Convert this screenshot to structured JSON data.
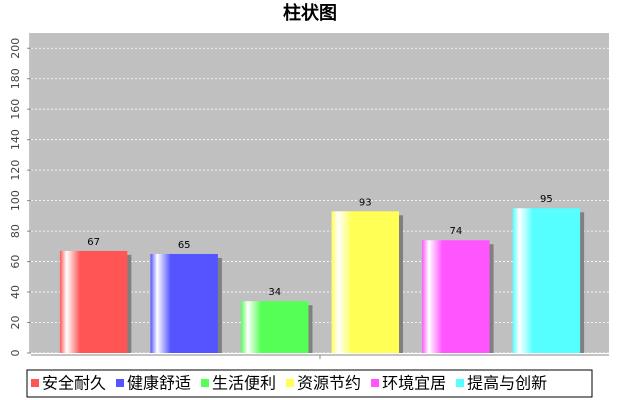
{
  "chart_data": {
    "type": "bar",
    "title": "柱状图",
    "categories": [
      null
    ],
    "series": [
      {
        "name": "安全耐久",
        "color": "#ff5555",
        "values": [
          67
        ]
      },
      {
        "name": "健康舒适",
        "color": "#5555ff",
        "values": [
          65
        ]
      },
      {
        "name": "生活便利",
        "color": "#55ff55",
        "values": [
          34
        ]
      },
      {
        "name": "资源节约",
        "color": "#ffff55",
        "values": [
          93
        ]
      },
      {
        "name": "环境宜居",
        "color": "#ff55ff",
        "values": [
          74
        ]
      },
      {
        "name": "提高与创新",
        "color": "#55ffff",
        "values": [
          95
        ]
      }
    ],
    "ylim": [
      0,
      210
    ],
    "yticks": [
      0,
      20,
      40,
      60,
      80,
      100,
      120,
      140,
      160,
      180,
      200
    ],
    "grid": true,
    "legend": "bottom"
  }
}
